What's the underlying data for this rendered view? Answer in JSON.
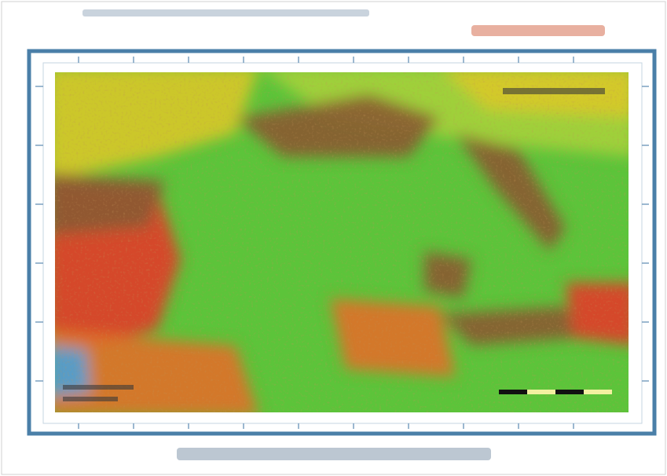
{
  "map": {
    "terrain_colors": {
      "lowland": "#5cc43a",
      "plain": "#a6d23a",
      "upland": "#d8c82a",
      "hill": "#e0702a",
      "mountain": "#8a5a32",
      "peak": "#e23a2a",
      "water": "#4aa0d8"
    },
    "scale_bar_colors": [
      "#111111",
      "#f2f0a0",
      "#111111",
      "#f2f0a0"
    ]
  }
}
